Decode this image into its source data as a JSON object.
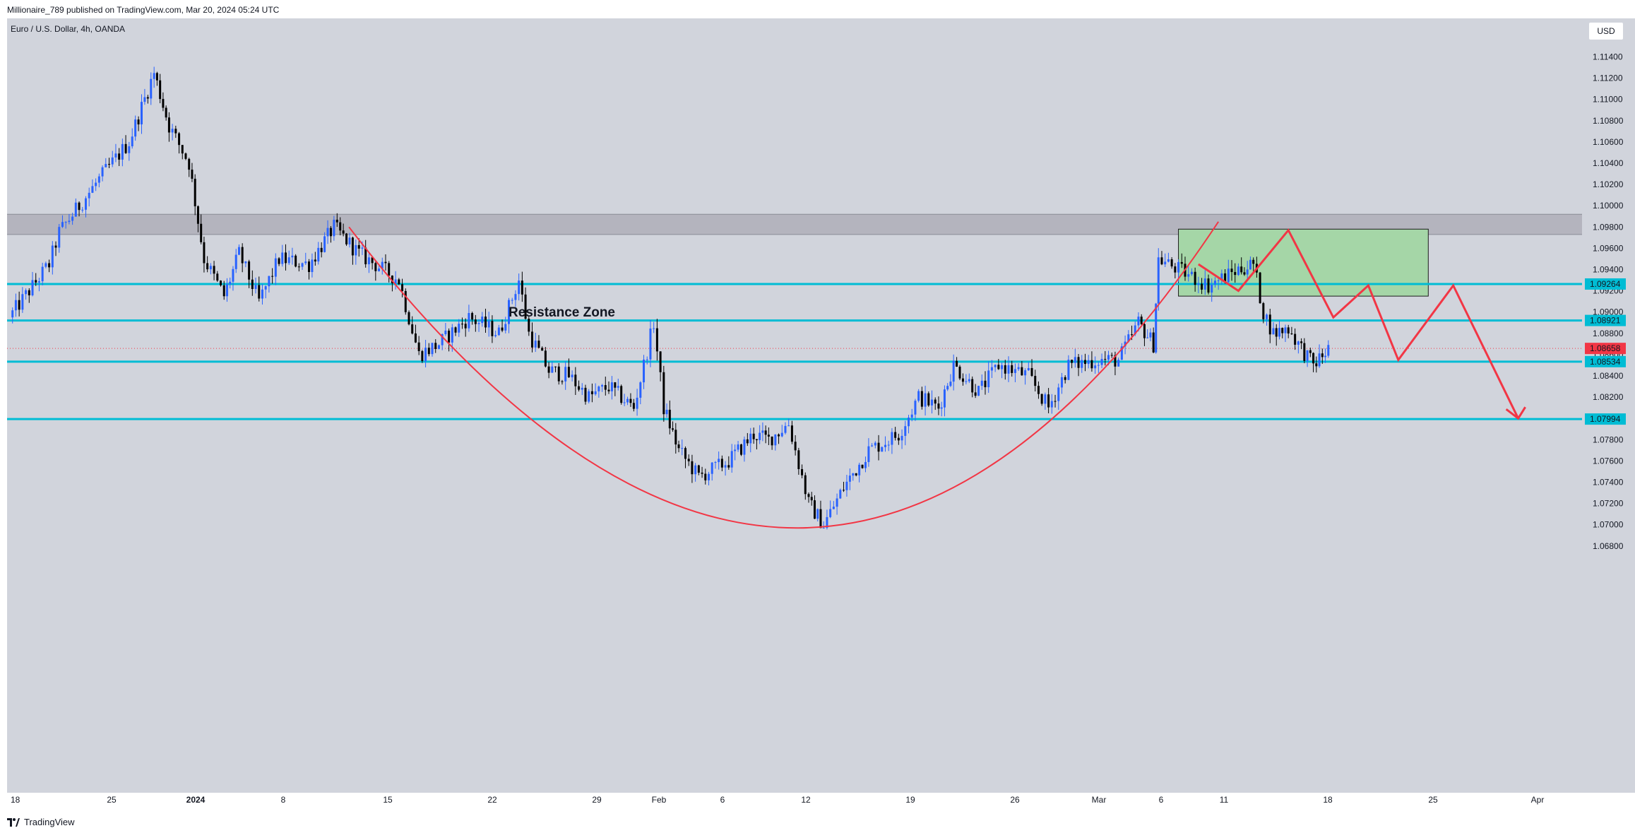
{
  "header": {
    "publish_line": "Millionaire_789 published on TradingView.com, Mar 20, 2024 05:24 UTC",
    "symbol_title": "Euro / U.S. Dollar, 4h, OANDA",
    "currency_button": "USD"
  },
  "footer": {
    "logo_text": "TradingView",
    "logo_icon": "tradingview-logo-icon"
  },
  "colors": {
    "background": "#d1d4dc",
    "up_candle": "#2962ff",
    "down_candle": "#000000",
    "level_line": "#00bcd4",
    "curve": "#f23645",
    "resistance_zone": "#a9aab4",
    "box_fill": "#a5d6a7",
    "last_price_tag": "#f23645"
  },
  "chart_data": {
    "type": "candlestick",
    "title": "Euro / U.S. Dollar, 4h, OANDA",
    "ylim": [
      1.068,
      1.116
    ],
    "y_ticks": [
      "1.11400",
      "1.11200",
      "1.11000",
      "1.10800",
      "1.10600",
      "1.10400",
      "1.10200",
      "1.10000",
      "1.09800",
      "1.09600",
      "1.09400",
      "1.09200",
      "1.09000",
      "1.08800",
      "1.08600",
      "1.08400",
      "1.08200",
      "1.08000",
      "1.07800",
      "1.07600",
      "1.07400",
      "1.07200",
      "1.07000",
      "1.06800"
    ],
    "x_ticks": [
      "18",
      "25",
      "2024",
      "8",
      "15",
      "22",
      "29",
      "Feb",
      "6",
      "12",
      "19",
      "26",
      "Mar",
      "6",
      "11",
      "18",
      "25",
      "Apr"
    ],
    "price_path": [
      {
        "x": 0,
        "p": 1.0895
      },
      {
        "x": 4,
        "p": 1.0945
      },
      {
        "x": 5,
        "p": 1.0975
      },
      {
        "x": 9,
        "p": 1.1025
      },
      {
        "x": 12,
        "p": 1.106
      },
      {
        "x": 14.5,
        "p": 1.1125
      },
      {
        "x": 16,
        "p": 1.1075
      },
      {
        "x": 18,
        "p": 1.104
      },
      {
        "x": 19.5,
        "p": 1.095
      },
      {
        "x": 21.5,
        "p": 1.0915
      },
      {
        "x": 23,
        "p": 1.0955
      },
      {
        "x": 25,
        "p": 1.091
      },
      {
        "x": 27,
        "p": 1.095
      },
      {
        "x": 30,
        "p": 1.0945
      },
      {
        "x": 32.5,
        "p": 1.098
      },
      {
        "x": 35,
        "p": 1.0955
      },
      {
        "x": 39,
        "p": 1.093
      },
      {
        "x": 41,
        "p": 1.086
      },
      {
        "x": 43,
        "p": 1.087
      },
      {
        "x": 46,
        "p": 1.0895
      },
      {
        "x": 49,
        "p": 1.088
      },
      {
        "x": 51,
        "p": 1.093
      },
      {
        "x": 52,
        "p": 1.088
      },
      {
        "x": 54,
        "p": 1.0845
      },
      {
        "x": 56,
        "p": 1.084
      },
      {
        "x": 58,
        "p": 1.082
      },
      {
        "x": 60,
        "p": 1.083
      },
      {
        "x": 62.5,
        "p": 1.081
      },
      {
        "x": 64.5,
        "p": 1.089
      },
      {
        "x": 65.5,
        "p": 1.081
      },
      {
        "x": 67,
        "p": 1.077
      },
      {
        "x": 69,
        "p": 1.0745
      },
      {
        "x": 72,
        "p": 1.076
      },
      {
        "x": 74.5,
        "p": 1.0785
      },
      {
        "x": 76,
        "p": 1.078
      },
      {
        "x": 78,
        "p": 1.0795
      },
      {
        "x": 80,
        "p": 1.072
      },
      {
        "x": 81.5,
        "p": 1.07
      },
      {
        "x": 83.5,
        "p": 1.0735
      },
      {
        "x": 86,
        "p": 1.077
      },
      {
        "x": 89,
        "p": 1.0785
      },
      {
        "x": 91,
        "p": 1.082
      },
      {
        "x": 93,
        "p": 1.081
      },
      {
        "x": 94.5,
        "p": 1.085
      },
      {
        "x": 97,
        "p": 1.0825
      },
      {
        "x": 99,
        "p": 1.085
      },
      {
        "x": 102,
        "p": 1.084
      },
      {
        "x": 104,
        "p": 1.081
      },
      {
        "x": 106,
        "p": 1.085
      },
      {
        "x": 109,
        "p": 1.0855
      },
      {
        "x": 111,
        "p": 1.0855
      },
      {
        "x": 113,
        "p": 1.089
      },
      {
        "x": 114.5,
        "p": 1.087
      },
      {
        "x": 115,
        "p": 1.095
      },
      {
        "x": 118,
        "p": 1.0935
      },
      {
        "x": 120,
        "p": 1.0925
      },
      {
        "x": 123,
        "p": 1.094
      },
      {
        "x": 124.5,
        "p": 1.0945
      },
      {
        "x": 125.5,
        "p": 1.09
      },
      {
        "x": 126.5,
        "p": 1.088
      },
      {
        "x": 128,
        "p": 1.0885
      },
      {
        "x": 129,
        "p": 1.087
      },
      {
        "x": 130.5,
        "p": 1.085
      },
      {
        "x": 132,
        "p": 1.0865
      }
    ],
    "levels": [
      {
        "price": 1.09264,
        "label": "1.09264"
      },
      {
        "price": 1.08921,
        "label": "1.08921"
      },
      {
        "price": 1.08534,
        "label": "1.08534"
      },
      {
        "price": 1.07994,
        "label": "1.07994"
      }
    ],
    "last_price": {
      "price": 1.08658,
      "label": "1.08658"
    },
    "resistance_zone": {
      "top": 1.0992,
      "bottom": 1.0973,
      "label": "Resistance Zone"
    },
    "rounding_bottom": {
      "start": {
        "x": 34,
        "p": 1.098
      },
      "bottom": {
        "x": 79,
        "p": 1.0697
      },
      "end": {
        "x": 121,
        "p": 1.0985
      }
    },
    "projection_box": {
      "x1": 117,
      "x2": 142,
      "top": 1.0978,
      "bottom": 1.0915
    },
    "projection_zigzag": [
      {
        "x": 119,
        "p": 1.0945
      },
      {
        "x": 123,
        "p": 1.092
      },
      {
        "x": 128,
        "p": 1.0977
      },
      {
        "x": 132.5,
        "p": 1.0895
      },
      {
        "x": 136,
        "p": 1.0925
      },
      {
        "x": 139,
        "p": 1.0855
      },
      {
        "x": 144.5,
        "p": 1.0925
      },
      {
        "x": 151,
        "p": 1.08
      }
    ],
    "dates": {
      "start_index": 0,
      "end_index": 152
    }
  }
}
